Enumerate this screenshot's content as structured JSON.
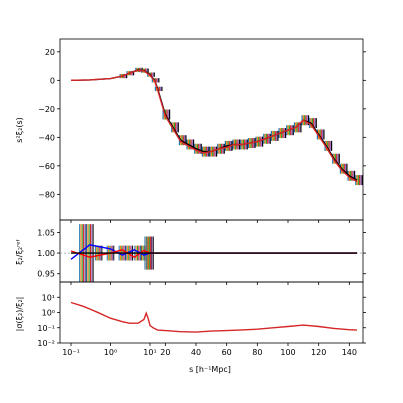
{
  "chart_data": [
    {
      "type": "line",
      "panel": "top",
      "ylabel": "s²ξ₂(s)",
      "ylim": [
        -98,
        29
      ],
      "xscale": "symlog (linear threshold 10, linear 10–150)",
      "yticks": [
        "20",
        "0",
        "−20",
        "−40",
        "−60",
        "−80"
      ],
      "ytick_values": [
        20,
        0,
        -20,
        -40,
        -60,
        -80
      ],
      "x": [
        0.1,
        0.3,
        1,
        2,
        3,
        5,
        7,
        10,
        13,
        15,
        20,
        25,
        30,
        35,
        40,
        45,
        50,
        55,
        60,
        65,
        70,
        75,
        80,
        85,
        90,
        95,
        100,
        105,
        110,
        115,
        120,
        125,
        130,
        135,
        140,
        145
      ],
      "series": [
        {
          "color": "#000000",
          "values": [
            0,
            0.3,
            1.2,
            3.0,
            5.0,
            7.3,
            6.8,
            4.0,
            0,
            -6,
            -24,
            -33,
            -42,
            -45,
            -48,
            -50,
            -50,
            -48,
            -46,
            -45,
            -45,
            -44,
            -43,
            -41,
            -39,
            -37,
            -35,
            -33,
            -28,
            -30,
            -38,
            -46,
            -55,
            -62,
            -67,
            -70
          ]
        },
        {
          "color": "#d62728",
          "values": [
            0,
            0.3,
            1.2,
            3.0,
            5.0,
            7.1,
            6.6,
            3.5,
            -0.5,
            -7,
            -25,
            -34,
            -43,
            -46,
            -49,
            -51,
            -50,
            -48,
            -47,
            -45,
            -45,
            -44,
            -43,
            -41,
            -39,
            -37,
            -35,
            -33,
            -28,
            -31,
            -39,
            -47,
            -56,
            -63,
            -68,
            -71
          ]
        }
      ],
      "errorbar_colors": [
        "#1f77b4",
        "#ff7f0e",
        "#2ca02c",
        "#d62728",
        "#9467bd",
        "#000000"
      ]
    },
    {
      "type": "line",
      "panel": "middle",
      "ylabel": "ξ₂/ξ₂ʳᵉᶠ",
      "ylim": [
        0.93,
        1.08
      ],
      "yticks": [
        "1.05",
        "1.00",
        "0.95"
      ],
      "ytick_values": [
        1.05,
        1.0,
        0.95
      ],
      "series": [
        {
          "color": "#0000ff",
          "x": [
            0.1,
            0.3,
            1,
            2,
            4,
            7,
            10,
            20,
            145
          ],
          "values": [
            0.985,
            1.02,
            1.01,
            0.995,
            1.008,
            0.995,
            1.0,
            1.0,
            1.0
          ]
        },
        {
          "color": "#ff0000",
          "x": [
            0.1,
            0.3,
            1,
            2,
            4,
            7,
            10,
            20,
            145
          ],
          "values": [
            1.005,
            0.99,
            1.0,
            1.008,
            0.99,
            1.006,
            1.0,
            1.0,
            1.0
          ]
        },
        {
          "color": "#000000",
          "x": [
            0.1,
            145
          ],
          "values": [
            1.0,
            1.0
          ]
        }
      ]
    },
    {
      "type": "line",
      "panel": "bottom",
      "ylabel": "|σ(ξ₂)/ξ₂|",
      "xlabel": "s [h⁻¹Mpc]",
      "yscale": "log",
      "ylim": [
        0.01,
        100
      ],
      "yticks": [
        "10¹",
        "10⁰",
        "10⁻¹",
        "10⁻²"
      ],
      "ytick_values": [
        10,
        1,
        0.1,
        0.01
      ],
      "xticks": [
        "10⁻¹",
        "10⁰",
        "10¹",
        "20",
        "40",
        "60",
        "80",
        "100",
        "120",
        "140"
      ],
      "xtick_values": [
        0.1,
        1,
        10,
        20,
        40,
        60,
        80,
        100,
        120,
        140
      ],
      "series": [
        {
          "color": "#d62728",
          "x": [
            0.1,
            0.2,
            0.3,
            0.5,
            0.8,
            1,
            2,
            3,
            5,
            7,
            8,
            9,
            10,
            12,
            15,
            20,
            30,
            40,
            50,
            60,
            70,
            80,
            90,
            100,
            110,
            120,
            130,
            140,
            145
          ],
          "values": [
            4.5,
            2.6,
            1.7,
            0.95,
            0.55,
            0.42,
            0.25,
            0.2,
            0.2,
            0.35,
            0.9,
            0.4,
            0.14,
            0.1,
            0.07,
            0.065,
            0.055,
            0.052,
            0.06,
            0.065,
            0.072,
            0.08,
            0.1,
            0.12,
            0.15,
            0.12,
            0.09,
            0.075,
            0.07
          ]
        }
      ]
    }
  ]
}
